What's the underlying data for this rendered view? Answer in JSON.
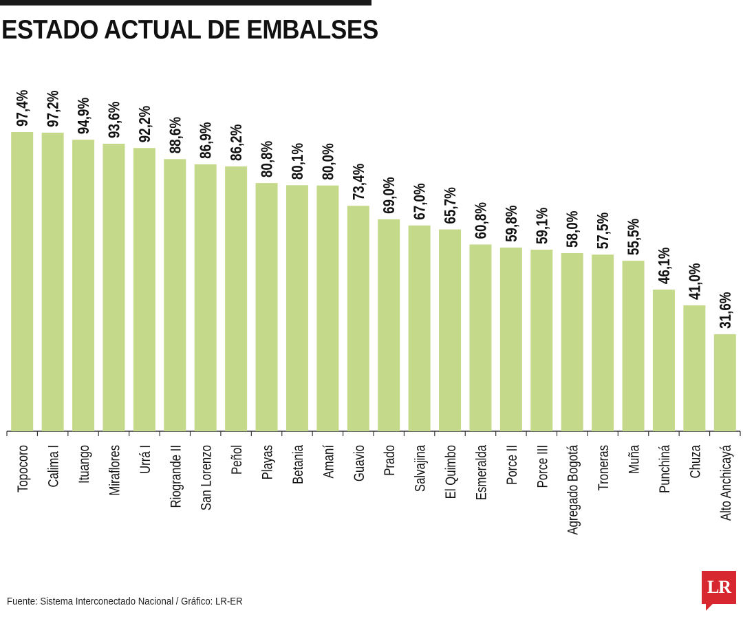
{
  "title": "ESTADO ACTUAL DE EMBALSES",
  "source": "Fuente: Sistema Interconectado Nacional / Gráfico: LR-ER",
  "logo_text": "LR",
  "colors": {
    "bar": "#c5d98a",
    "text": "#111111",
    "logo": "#d7282f",
    "axis": "#333333"
  },
  "chart_data": {
    "type": "bar",
    "title": "ESTADO ACTUAL DE EMBALSES",
    "xlabel": "",
    "ylabel": "",
    "ylim": [
      0,
      100
    ],
    "categories": [
      "Topocoro",
      "Calima I",
      "Ituango",
      "Miraflores",
      "Urrá I",
      "Riogrande II",
      "San Lorenzo",
      "Peñol",
      "Playas",
      "Betania",
      "Amaní",
      "Guavio",
      "Prado",
      "Salvajina",
      "El Quimbo",
      "Esmeralda",
      "Porce II",
      "Porce III",
      "Agregado Bogotá",
      "Troneras",
      "Muña",
      "Punchiná",
      "Chuza",
      "Alto Anchicayá"
    ],
    "values": [
      97.4,
      97.2,
      94.9,
      93.6,
      92.2,
      88.6,
      86.9,
      86.2,
      80.8,
      80.1,
      80.0,
      73.4,
      69.0,
      67.0,
      65.7,
      60.8,
      59.8,
      59.1,
      58.0,
      57.5,
      55.5,
      46.1,
      41.0,
      31.6
    ],
    "labels": [
      "97,4%",
      "97,2%",
      "94,9%",
      "93,6%",
      "92,2%",
      "88,6%",
      "86,9%",
      "86,2%",
      "80,8%",
      "80,1%",
      "80,0%",
      "73,4%",
      "69,0%",
      "67,0%",
      "65,7%",
      "60,8%",
      "59,8%",
      "59,1%",
      "58,0%",
      "57,5%",
      "55,5%",
      "46,1%",
      "41,0%",
      "31,6%"
    ]
  }
}
